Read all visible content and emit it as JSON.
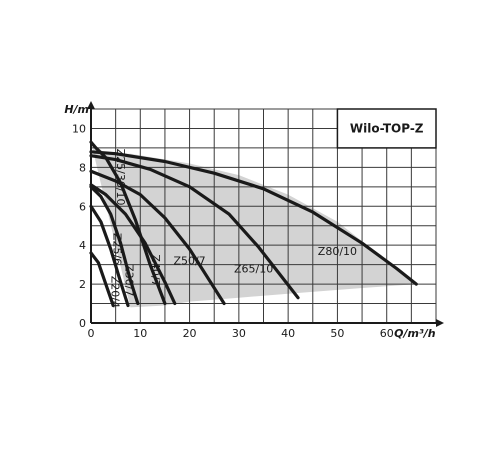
{
  "chart_data": {
    "type": "line",
    "title": "Wilo-TOP-Z",
    "xlabel": "Q/m³/h",
    "ylabel": "H/m",
    "xlim": [
      0,
      70
    ],
    "ylim": [
      0,
      11
    ],
    "x_ticks": [
      "0",
      "10",
      "20",
      "30",
      "40",
      "50",
      "60"
    ],
    "y_ticks": [
      "0",
      "2",
      "4",
      "6",
      "8",
      "10"
    ],
    "grid": true,
    "envelope": {
      "x": [
        0,
        3,
        8,
        20,
        30,
        40,
        50,
        55,
        60,
        65,
        66,
        55,
        40,
        30,
        20,
        15,
        8
      ],
      "y": [
        9.3,
        8.7,
        8.7,
        8.2,
        7.6,
        6.6,
        5.2,
        4.2,
        3.2,
        2.3,
        2.0,
        1.8,
        1.5,
        1.3,
        1.1,
        0.9,
        0.8
      ]
    },
    "series": [
      {
        "name": "Z20/4",
        "label": "Z20/4",
        "x": [
          0,
          1.5,
          3,
          4.5
        ],
        "y": [
          3.6,
          3.1,
          2.0,
          0.9
        ]
      },
      {
        "name": "Z25/6",
        "label": "Z25/6",
        "x": [
          0,
          2,
          4,
          6,
          7.5
        ],
        "y": [
          6.0,
          5.2,
          3.8,
          2.1,
          0.9
        ]
      },
      {
        "name": "Z30/7",
        "label": "Z30/7",
        "x": [
          0,
          2,
          4,
          6,
          8,
          9.5
        ],
        "y": [
          7.0,
          6.5,
          5.6,
          4.1,
          2.2,
          1.0
        ]
      },
      {
        "name": "Z25/30/10",
        "label": "Z25/30/10",
        "x": [
          0,
          1,
          3,
          6,
          9,
          12,
          15
        ],
        "y": [
          9.3,
          9.0,
          8.5,
          7.2,
          5.3,
          3.0,
          1.0
        ]
      },
      {
        "name": "Z40/7",
        "label": "Z40/7",
        "x": [
          0,
          3,
          7,
          11,
          15,
          17
        ],
        "y": [
          7.1,
          6.6,
          5.6,
          4.1,
          2.1,
          1.0
        ]
      },
      {
        "name": "Z50/7",
        "label": "Z50/7",
        "x": [
          0,
          5,
          10,
          15,
          20,
          24,
          27
        ],
        "y": [
          7.8,
          7.3,
          6.6,
          5.4,
          3.8,
          2.2,
          1.0
        ]
      },
      {
        "name": "Z65/10",
        "label": "Z65/10",
        "x": [
          0,
          5,
          12,
          20,
          28,
          34,
          38,
          42
        ],
        "y": [
          8.6,
          8.4,
          7.9,
          7.0,
          5.6,
          3.9,
          2.6,
          1.3
        ]
      },
      {
        "name": "Z80/10",
        "label": "Z80/10",
        "x": [
          0,
          5,
          15,
          25,
          35,
          45,
          55,
          62,
          66
        ],
        "y": [
          8.8,
          8.7,
          8.3,
          7.7,
          6.9,
          5.7,
          4.1,
          2.8,
          2.0
        ]
      }
    ]
  }
}
